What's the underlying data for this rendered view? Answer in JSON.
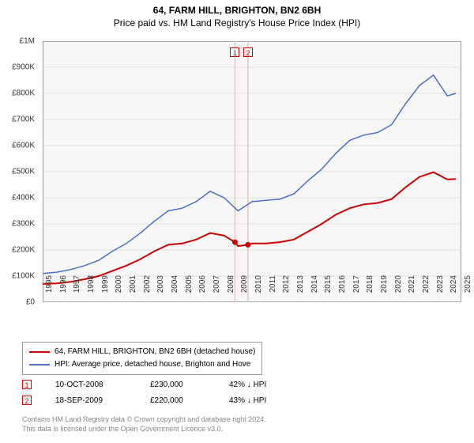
{
  "title_line1": "64, FARM HILL, BRIGHTON, BN2 6BH",
  "title_line2": "Price paid vs. HM Land Registry's House Price Index (HPI)",
  "chart": {
    "type": "line",
    "background_color": "#f7f7f7",
    "grid_color": "#cccccc",
    "border_color": "#999999",
    "x": {
      "min": 1995,
      "max": 2025,
      "ticks": [
        1995,
        1996,
        1997,
        1998,
        1999,
        2000,
        2001,
        2002,
        2003,
        2004,
        2005,
        2006,
        2007,
        2008,
        2009,
        2010,
        2011,
        2012,
        2013,
        2014,
        2015,
        2016,
        2017,
        2018,
        2019,
        2020,
        2021,
        2022,
        2023,
        2024,
        2025
      ]
    },
    "y": {
      "min": 0,
      "max": 1000000,
      "tick_step": 100000,
      "tick_labels": [
        "£0",
        "£100K",
        "£200K",
        "£300K",
        "£400K",
        "£500K",
        "£600K",
        "£700K",
        "£800K",
        "£900K",
        "£1M"
      ]
    },
    "series": [
      {
        "name": "property_price",
        "color": "#cc0000",
        "line_width": 2,
        "label": "64, FARM HILL, BRIGHTON, BN2 6BH (detached house)",
        "points": [
          [
            1995,
            70000
          ],
          [
            1996,
            72000
          ],
          [
            1997,
            78000
          ],
          [
            1998,
            88000
          ],
          [
            1999,
            100000
          ],
          [
            2000,
            120000
          ],
          [
            2001,
            140000
          ],
          [
            2002,
            165000
          ],
          [
            2003,
            195000
          ],
          [
            2004,
            220000
          ],
          [
            2005,
            225000
          ],
          [
            2006,
            240000
          ],
          [
            2007,
            265000
          ],
          [
            2008,
            255000
          ],
          [
            2008.78,
            230000
          ],
          [
            2009,
            215000
          ],
          [
            2009.71,
            220000
          ],
          [
            2010,
            225000
          ],
          [
            2011,
            225000
          ],
          [
            2012,
            230000
          ],
          [
            2013,
            240000
          ],
          [
            2014,
            270000
          ],
          [
            2015,
            300000
          ],
          [
            2016,
            335000
          ],
          [
            2017,
            360000
          ],
          [
            2018,
            375000
          ],
          [
            2019,
            380000
          ],
          [
            2020,
            395000
          ],
          [
            2021,
            440000
          ],
          [
            2022,
            480000
          ],
          [
            2023,
            498000
          ],
          [
            2024,
            470000
          ],
          [
            2024.6,
            472000
          ]
        ]
      },
      {
        "name": "hpi",
        "color": "#4a6fc3",
        "line_width": 1.5,
        "label": "HPI: Average price, detached house, Brighton and Hove",
        "points": [
          [
            1995,
            110000
          ],
          [
            1996,
            115000
          ],
          [
            1997,
            125000
          ],
          [
            1998,
            140000
          ],
          [
            1999,
            160000
          ],
          [
            2000,
            195000
          ],
          [
            2001,
            225000
          ],
          [
            2002,
            265000
          ],
          [
            2003,
            310000
          ],
          [
            2004,
            350000
          ],
          [
            2005,
            360000
          ],
          [
            2006,
            385000
          ],
          [
            2007,
            425000
          ],
          [
            2008,
            400000
          ],
          [
            2009,
            350000
          ],
          [
            2010,
            385000
          ],
          [
            2011,
            390000
          ],
          [
            2012,
            395000
          ],
          [
            2013,
            415000
          ],
          [
            2014,
            465000
          ],
          [
            2015,
            510000
          ],
          [
            2016,
            570000
          ],
          [
            2017,
            620000
          ],
          [
            2018,
            640000
          ],
          [
            2019,
            650000
          ],
          [
            2020,
            680000
          ],
          [
            2021,
            760000
          ],
          [
            2022,
            830000
          ],
          [
            2023,
            870000
          ],
          [
            2024,
            790000
          ],
          [
            2024.6,
            800000
          ]
        ]
      }
    ],
    "transaction_markers": [
      {
        "n": "1",
        "x": 2008.78,
        "y": 230000
      },
      {
        "n": "2",
        "x": 2009.71,
        "y": 220000
      }
    ],
    "vline_color": "#f2c0c0"
  },
  "legend": {
    "border_color": "#999999"
  },
  "transactions": [
    {
      "n": "1",
      "date": "10-OCT-2008",
      "price": "£230,000",
      "rel": "42% ↓ HPI"
    },
    {
      "n": "2",
      "date": "18-SEP-2009",
      "price": "£220,000",
      "rel": "43% ↓ HPI"
    }
  ],
  "attribution_line1": "Contains HM Land Registry data © Crown copyright and database right 2024.",
  "attribution_line2": "This data is licensed under the Open Government Licence v3.0.",
  "title_fontsize": 12,
  "tick_fontsize": 10,
  "legend_fontsize": 10,
  "attribution_color": "#888888"
}
